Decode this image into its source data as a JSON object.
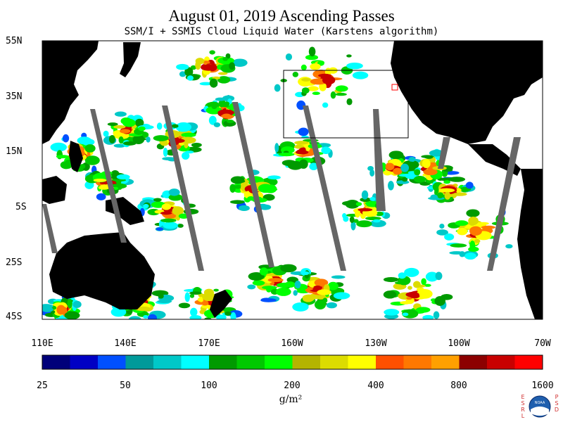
{
  "header": {
    "title": "August 01, 2019  Ascending Passes",
    "subtitle": "SSM/I + SSMIS Cloud Liquid Water (Karstens algorithm)"
  },
  "map": {
    "lat_labels": [
      "55N",
      "35N",
      "15N",
      "5S",
      "25S",
      "45S"
    ],
    "lon_labels": [
      "110E",
      "140E",
      "170E",
      "160W",
      "130W",
      "100W",
      "70W"
    ],
    "land_color": "#000000",
    "ocean_clear_color": "#ffffff",
    "gap_color": "#666666"
  },
  "colorbar": {
    "tick_labels": [
      "25",
      "50",
      "100",
      "200",
      "400",
      "800",
      "1600"
    ],
    "unit": "g/m²",
    "colors": [
      "#00007a",
      "#0000c4",
      "#0050ff",
      "#009a9a",
      "#00c8c8",
      "#00ffff",
      "#009a00",
      "#00c800",
      "#00ff00",
      "#b4b400",
      "#dcdc00",
      "#ffff00",
      "#ff5000",
      "#ff7800",
      "#ffa000",
      "#8c0000",
      "#c80000",
      "#ff0000"
    ]
  },
  "logos": {
    "left_text": "ESRL",
    "right_text": "PSD",
    "center_text": "NOAA"
  }
}
